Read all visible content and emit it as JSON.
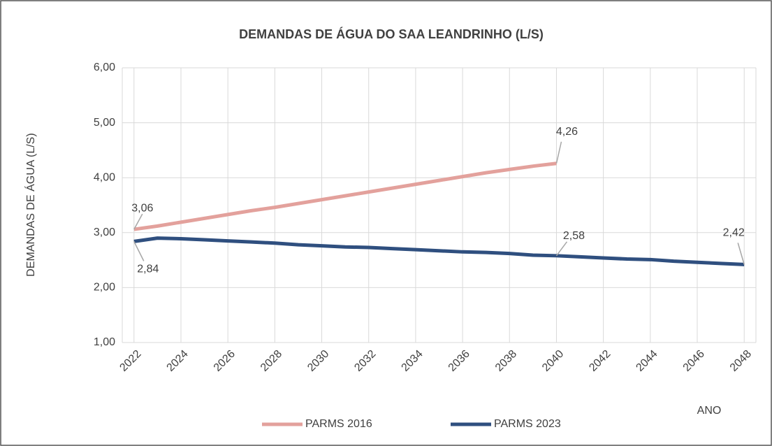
{
  "chart_data": {
    "type": "line",
    "title": "DEMANDAS DE ÁGUA DO SAA LEANDRINHO (L/S)",
    "y_label": "DEMANDAS DE ÁGUA (L/S)",
    "x_label": "ANO",
    "x": [
      2022,
      2023,
      2024,
      2025,
      2026,
      2027,
      2028,
      2029,
      2030,
      2031,
      2032,
      2033,
      2034,
      2035,
      2036,
      2037,
      2038,
      2039,
      2040,
      2041,
      2042,
      2043,
      2044,
      2045,
      2046,
      2047,
      2048
    ],
    "xlim": [
      2021.5,
      2048.5
    ],
    "xticks": [
      2022,
      2024,
      2026,
      2028,
      2030,
      2032,
      2034,
      2036,
      2038,
      2040,
      2042,
      2044,
      2046,
      2048
    ],
    "ylim": [
      1,
      6
    ],
    "yticks": [
      {
        "value": 1,
        "label": "1,00"
      },
      {
        "value": 2,
        "label": "2,00"
      },
      {
        "value": 3,
        "label": "3,00"
      },
      {
        "value": 4,
        "label": "4,00"
      },
      {
        "value": 5,
        "label": "5,00"
      },
      {
        "value": 6,
        "label": "6,00"
      }
    ],
    "grid": true,
    "legend": "bottom",
    "series": [
      {
        "name": "PARMS 2016",
        "color": "#e3a19c",
        "values": [
          3.06,
          3.12,
          3.19,
          3.26,
          3.33,
          3.4,
          3.46,
          3.53,
          3.6,
          3.67,
          3.74,
          3.81,
          3.88,
          3.95,
          4.02,
          4.09,
          4.15,
          4.21,
          4.26,
          null,
          null,
          null,
          null,
          null,
          null,
          null,
          null
        ],
        "value_labels": [
          "3,06",
          null,
          null,
          null,
          null,
          null,
          null,
          null,
          null,
          null,
          null,
          null,
          null,
          null,
          null,
          null,
          null,
          null,
          "4,26",
          null,
          null,
          null,
          null,
          null,
          null,
          null,
          null
        ]
      },
      {
        "name": "PARMS 2023",
        "color": "#2f4f7f",
        "values": [
          2.84,
          2.9,
          2.89,
          2.87,
          2.85,
          2.83,
          2.81,
          2.78,
          2.76,
          2.74,
          2.73,
          2.71,
          2.69,
          2.67,
          2.65,
          2.64,
          2.62,
          2.59,
          2.58,
          2.56,
          2.54,
          2.52,
          2.51,
          2.48,
          2.46,
          2.44,
          2.42
        ],
        "value_labels": [
          "2,84",
          null,
          null,
          null,
          null,
          null,
          null,
          null,
          null,
          null,
          null,
          null,
          null,
          null,
          null,
          null,
          null,
          null,
          "2,58",
          null,
          null,
          null,
          null,
          null,
          null,
          null,
          "2,42"
        ]
      }
    ]
  }
}
